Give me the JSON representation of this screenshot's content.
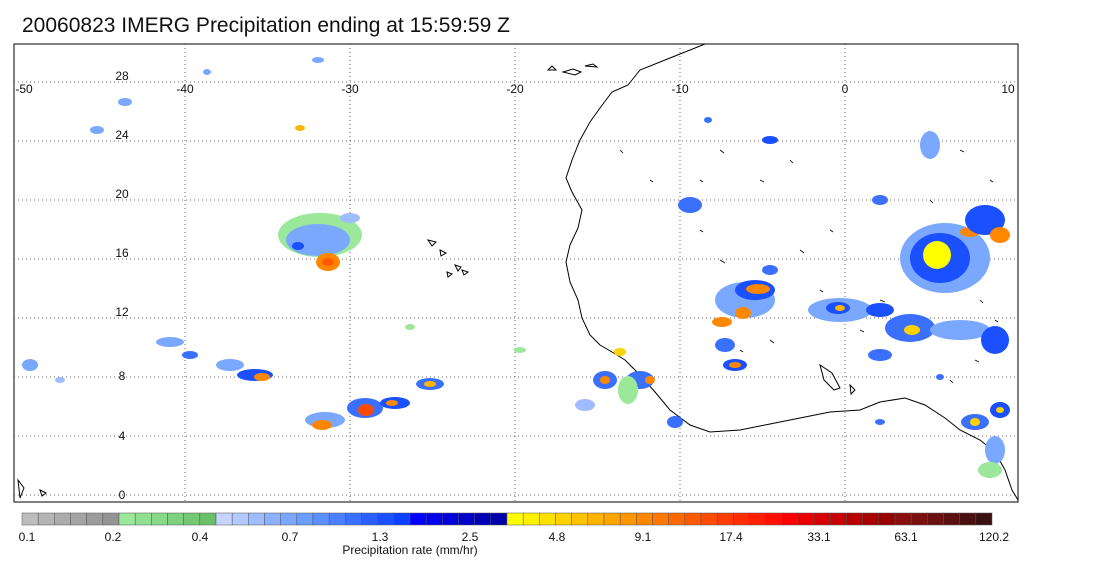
{
  "title": "20060823 IMERG Precipitation ending at 15:59:59 Z",
  "map": {
    "lon_range": [
      -50,
      10
    ],
    "lat_range": [
      -1,
      30
    ],
    "lon_ticks": [
      "-50",
      "-40",
      "-30",
      "-20",
      "-10",
      "0",
      "10"
    ],
    "lat_ticks": [
      "28",
      "24",
      "20",
      "16",
      "12",
      "8",
      "4",
      "0"
    ],
    "grid": true
  },
  "colorbar": {
    "label": "Precipitation rate (mm/hr)",
    "tick_labels": [
      "0.1",
      "0.2",
      "0.4",
      "0.7",
      "1.3",
      "2.5",
      "4.8",
      "9.1",
      "17.4",
      "33.1",
      "63.1",
      "120.2"
    ],
    "colors": [
      "#bdbdbd",
      "#b4b4b4",
      "#acacac",
      "#a4a4a4",
      "#9c9c9c",
      "#949494",
      "#9be89b",
      "#91e091",
      "#87d887",
      "#7dd07d",
      "#73c873",
      "#69c069",
      "#c6d4ff",
      "#b2c8ff",
      "#9ebcff",
      "#8cb2ff",
      "#7aa8ff",
      "#6a9eff",
      "#5a90ff",
      "#4a80ff",
      "#3a70ff",
      "#2a60ff",
      "#1a50ff",
      "#0a40ff",
      "#0000ff",
      "#0000ee",
      "#0000dd",
      "#0000cc",
      "#0000bb",
      "#0000aa",
      "#ffff00",
      "#fff000",
      "#ffe100",
      "#ffd200",
      "#ffc300",
      "#ffb400",
      "#ffa500",
      "#ff9600",
      "#ff8700",
      "#ff7800",
      "#ff6900",
      "#ff5a00",
      "#ff4b00",
      "#ff3c00",
      "#ff2d00",
      "#ff1e00",
      "#ff0f00",
      "#ff0000",
      "#e80000",
      "#d80000",
      "#c80000",
      "#b80000",
      "#a80000",
      "#980000",
      "#8a1010",
      "#7a1010",
      "#6a1010",
      "#5a1010",
      "#4a1010",
      "#3a1010"
    ]
  }
}
